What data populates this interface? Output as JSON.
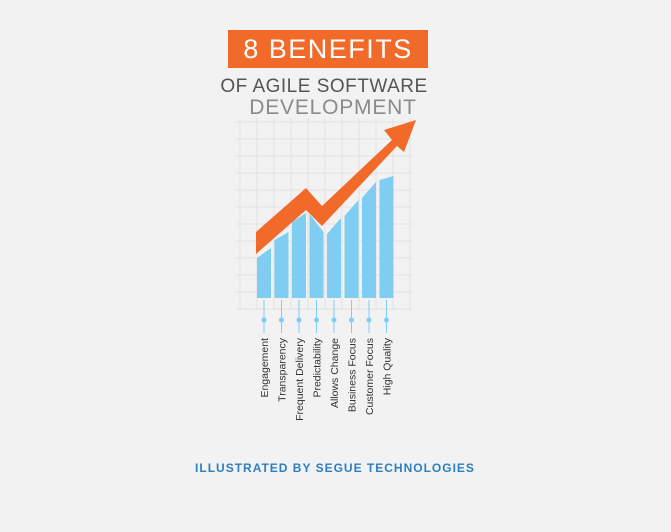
{
  "header": {
    "badge": "8 BENEFITS",
    "line1": "OF AGILE SOFTWARE",
    "line2": "DEVELOPMENT"
  },
  "benefits": [
    "Engagement",
    "Transparency",
    "Frequent Delivery",
    "Predictability",
    "Allows Change",
    "Business Focus",
    "Customer Focus",
    "High Quality"
  ],
  "credit": "ILLUSTRATED BY SEGUE TECHNOLOGIES"
}
